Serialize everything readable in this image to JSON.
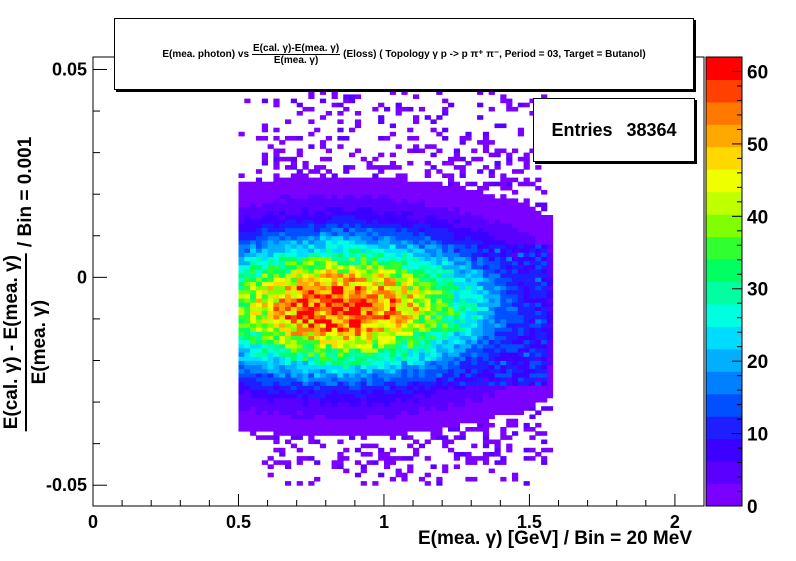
{
  "title": {
    "prefix": "E(mea. photon) vs",
    "frac_num": "E(cal. γ)-E(mea. γ)",
    "frac_den": "E(mea. γ)",
    "suffix": "(Eloss) ( Topology γ p -> p π⁺ π⁻,  Period = 03, Target = Butanol)"
  },
  "stats": {
    "label": "Entries",
    "value": "38364"
  },
  "xlabel": "E(mea. γ) [GeV] / Bin = 20 MeV",
  "ylabel": {
    "frac_num": "E(cal. γ) - E(mea. γ)",
    "frac_den": "E(mea. γ)",
    "suffix": "/ Bin = 0.001"
  },
  "chart_data": {
    "type": "heatmap",
    "xlim": [
      0,
      2.1
    ],
    "ylim": [
      -0.055,
      0.053
    ],
    "x_ticks": [
      0,
      0.5,
      1,
      1.5,
      2
    ],
    "x_tick_labels": [
      "0",
      "0.5",
      "1",
      "1.5",
      "2"
    ],
    "y_ticks": [
      -0.05,
      0,
      0.05
    ],
    "y_tick_labels": [
      "-0.05",
      "0",
      "0.05"
    ],
    "x_bin_width": 0.02,
    "y_bin_width": 0.001,
    "z_range": [
      0,
      62
    ],
    "colorbar_ticks": [
      0,
      10,
      20,
      30,
      40,
      50,
      60
    ],
    "colorbar_tick_labels": [
      "0",
      "10",
      "20",
      "30",
      "40",
      "50",
      "60"
    ],
    "entries": 38364,
    "x_occupied_range": [
      0.5,
      1.58
    ],
    "y_occupied_range": [
      -0.05,
      0.047
    ],
    "peak": {
      "x": 0.85,
      "y": -0.007,
      "z": 62
    },
    "core_x_range": [
      0.62,
      1.56
    ],
    "core_y_range": [
      -0.026,
      0.008
    ],
    "grid": false
  },
  "colors": {
    "palette": [
      "#7a00ff",
      "#5a00ff",
      "#3b00ff",
      "#1e1eff",
      "#0050ff",
      "#0080ff",
      "#00b0ff",
      "#00dcff",
      "#00ffe0",
      "#00ffa0",
      "#00ff60",
      "#30ff30",
      "#80ff00",
      "#c0ff00",
      "#f0ff00",
      "#ffd800",
      "#ffa800",
      "#ff7800",
      "#ff4000",
      "#ff0000"
    ]
  }
}
